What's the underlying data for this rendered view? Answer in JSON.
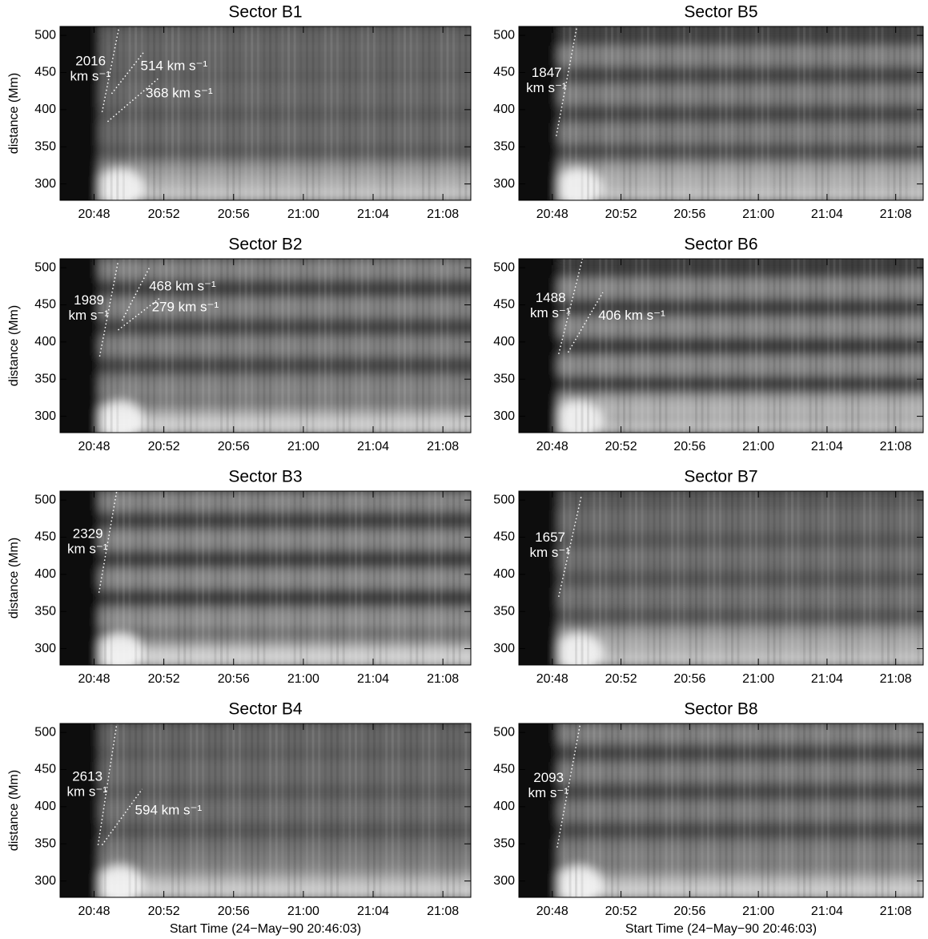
{
  "chart_data": [
    {
      "type": "image",
      "title": "Sector B1",
      "ylabel": "distance (Mm)",
      "xlim": [
        1246.05,
        1269.6
      ],
      "ylim": [
        278,
        512
      ],
      "xticks": [
        {
          "value": 1248,
          "label": "20:48"
        },
        {
          "value": 1252,
          "label": "20:52"
        },
        {
          "value": 1256,
          "label": "20:56"
        },
        {
          "value": 1260,
          "label": "21:00"
        },
        {
          "value": 1264,
          "label": "21:04"
        },
        {
          "value": 1268,
          "label": "21:08"
        }
      ],
      "yticks": [
        300,
        350,
        400,
        450,
        500
      ],
      "annotations": [
        {
          "x": [
            1248.46,
            1249.43
          ],
          "y": [
            396.8,
            510.8
          ],
          "label": [
            "2016",
            "km s⁻¹"
          ],
          "side": "left"
        },
        {
          "x": [
            1249.01,
            1250.85
          ],
          "y": [
            421.5,
            477.4
          ],
          "label": [
            "514 km s⁻¹"
          ],
          "side": "right"
        },
        {
          "x": [
            1248.78,
            1251.68
          ],
          "y": [
            383.9,
            441.9
          ],
          "label": [
            "368 km s⁻¹"
          ],
          "side": "right"
        }
      ]
    },
    {
      "type": "image",
      "title": "Sector B2",
      "ylabel": "distance (Mm)",
      "xlim": [
        1246.05,
        1269.6
      ],
      "ylim": [
        278,
        512
      ],
      "xticks": [
        {
          "value": 1248,
          "label": "20:48"
        },
        {
          "value": 1252,
          "label": "20:52"
        },
        {
          "value": 1256,
          "label": "20:56"
        },
        {
          "value": 1260,
          "label": "21:00"
        },
        {
          "value": 1264,
          "label": "21:04"
        },
        {
          "value": 1268,
          "label": "21:08"
        }
      ],
      "yticks": [
        300,
        350,
        400,
        450,
        500
      ],
      "annotations": [
        {
          "x": [
            1248.32,
            1249.38
          ],
          "y": [
            380.6,
            508.6
          ],
          "label": [
            "1989",
            "km s⁻¹"
          ],
          "side": "left"
        },
        {
          "x": [
            1249.61,
            1251.22
          ],
          "y": [
            429,
            502.2
          ],
          "label": [
            "468 km s⁻¹"
          ],
          "side": "right"
        },
        {
          "x": [
            1249.38,
            1251.77
          ],
          "y": [
            416.1,
            459.1
          ],
          "label": [
            "279 km s⁻¹"
          ],
          "side": "right"
        }
      ]
    },
    {
      "type": "image",
      "title": "Sector B3",
      "ylabel": "distance (Mm)",
      "xlim": [
        1246.05,
        1269.6
      ],
      "ylim": [
        278,
        512
      ],
      "xticks": [
        {
          "value": 1248,
          "label": "20:48"
        },
        {
          "value": 1252,
          "label": "20:52"
        },
        {
          "value": 1256,
          "label": "20:56"
        },
        {
          "value": 1260,
          "label": "21:00"
        },
        {
          "value": 1264,
          "label": "21:04"
        },
        {
          "value": 1268,
          "label": "21:08"
        }
      ],
      "yticks": [
        300,
        350,
        400,
        450,
        500
      ],
      "annotations": [
        {
          "x": [
            1248.28,
            1249.29
          ],
          "y": [
            375.3,
            510.8
          ],
          "label": [
            "2329",
            "km s⁻¹"
          ],
          "side": "left"
        }
      ]
    },
    {
      "type": "image",
      "title": "Sector B4",
      "ylabel": "distance (Mm)",
      "xlabel": "Start Time (24−May−90 20:46:03)",
      "xlim": [
        1246.05,
        1269.6
      ],
      "ylim": [
        278,
        512
      ],
      "xticks": [
        {
          "value": 1248,
          "label": "20:48"
        },
        {
          "value": 1252,
          "label": "20:52"
        },
        {
          "value": 1256,
          "label": "20:56"
        },
        {
          "value": 1260,
          "label": "21:00"
        },
        {
          "value": 1264,
          "label": "21:04"
        },
        {
          "value": 1268,
          "label": "21:08"
        }
      ],
      "yticks": [
        300,
        350,
        400,
        450,
        500
      ],
      "annotations": [
        {
          "x": [
            1248.23,
            1249.29
          ],
          "y": [
            348.4,
            509.7
          ],
          "label": [
            "2613",
            "km s⁻¹"
          ],
          "side": "left"
        },
        {
          "x": [
            1248.46,
            1250.76
          ],
          "y": [
            348.4,
            423.7
          ],
          "label": [
            "594 km s⁻¹"
          ],
          "side": "right"
        }
      ]
    },
    {
      "type": "image",
      "title": "Sector B5",
      "xlim": [
        1246.05,
        1269.6
      ],
      "ylim": [
        278,
        512
      ],
      "xticks": [
        {
          "value": 1248,
          "label": "20:48"
        },
        {
          "value": 1252,
          "label": "20:52"
        },
        {
          "value": 1256,
          "label": "20:56"
        },
        {
          "value": 1260,
          "label": "21:00"
        },
        {
          "value": 1264,
          "label": "21:04"
        },
        {
          "value": 1268,
          "label": "21:08"
        }
      ],
      "yticks": [
        300,
        350,
        400,
        450,
        500
      ],
      "annotations": [
        {
          "x": [
            1248.23,
            1249.43
          ],
          "y": [
            364.5,
            511.8
          ],
          "label": [
            "1847",
            "km s⁻¹"
          ],
          "side": "left"
        }
      ]
    },
    {
      "type": "image",
      "title": "Sector B6",
      "xlim": [
        1246.05,
        1269.6
      ],
      "ylim": [
        278,
        512
      ],
      "xticks": [
        {
          "value": 1248,
          "label": "20:48"
        },
        {
          "value": 1252,
          "label": "20:52"
        },
        {
          "value": 1256,
          "label": "20:56"
        },
        {
          "value": 1260,
          "label": "21:00"
        },
        {
          "value": 1264,
          "label": "21:04"
        },
        {
          "value": 1268,
          "label": "21:08"
        }
      ],
      "yticks": [
        300,
        350,
        400,
        450,
        500
      ],
      "annotations": [
        {
          "x": [
            1248.37,
            1249.75
          ],
          "y": [
            383.9,
            511.8
          ],
          "label": [
            "1488",
            "km s⁻¹"
          ],
          "side": "left"
        },
        {
          "x": [
            1248.92,
            1250.94
          ],
          "y": [
            386.0,
            466.7
          ],
          "label": [
            "406 km s⁻¹"
          ],
          "side": "right"
        }
      ]
    },
    {
      "type": "image",
      "title": "Sector B7",
      "xlim": [
        1246.05,
        1269.6
      ],
      "ylim": [
        278,
        512
      ],
      "xticks": [
        {
          "value": 1248,
          "label": "20:48"
        },
        {
          "value": 1252,
          "label": "20:52"
        },
        {
          "value": 1256,
          "label": "20:56"
        },
        {
          "value": 1260,
          "label": "21:00"
        },
        {
          "value": 1264,
          "label": "21:04"
        },
        {
          "value": 1268,
          "label": "21:08"
        }
      ],
      "yticks": [
        300,
        350,
        400,
        450,
        500
      ],
      "annotations": [
        {
          "x": [
            1248.37,
            1249.7
          ],
          "y": [
            369.9,
            506.5
          ],
          "label": [
            "1657",
            "km s⁻¹"
          ],
          "side": "left"
        }
      ]
    },
    {
      "type": "image",
      "title": "Sector B8",
      "xlabel": "Start Time (24−May−90 20:46:03)",
      "xlim": [
        1246.05,
        1269.6
      ],
      "ylim": [
        278,
        512
      ],
      "xticks": [
        {
          "value": 1248,
          "label": "20:48"
        },
        {
          "value": 1252,
          "label": "20:52"
        },
        {
          "value": 1256,
          "label": "20:56"
        },
        {
          "value": 1260,
          "label": "21:00"
        },
        {
          "value": 1264,
          "label": "21:04"
        },
        {
          "value": 1268,
          "label": "21:08"
        }
      ],
      "yticks": [
        300,
        350,
        400,
        450,
        500
      ],
      "annotations": [
        {
          "x": [
            1248.28,
            1249.61
          ],
          "y": [
            345.2,
            509.7
          ],
          "label": [
            "2093",
            "km s⁻¹"
          ],
          "side": "left"
        }
      ]
    }
  ]
}
